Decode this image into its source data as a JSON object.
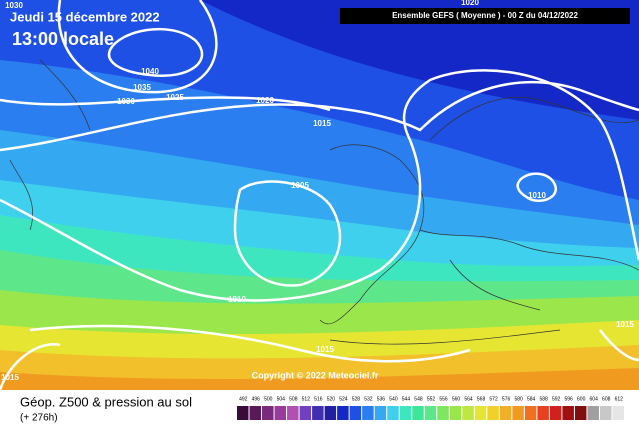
{
  "header": {
    "date": "Jeudi 15 décembre 2022",
    "time": "13:00 locale",
    "model": "Ensemble GEFS ( Moyenne ) - 00 Z du 04/12/2022"
  },
  "contour_labels": [
    "1030",
    "1040",
    "1035",
    "1030",
    "1025",
    "1020",
    "1015",
    "1005",
    "1010",
    "1010",
    "1015",
    "1015",
    "1015",
    "1020"
  ],
  "copyright": "Copyright © 2022 Meteociel.fr",
  "footer": {
    "title": "Géop. Z500 & pression au sol",
    "lead": "(+ 276h)"
  },
  "colorbar": {
    "ticks": [
      492,
      496,
      500,
      504,
      508,
      512,
      516,
      520,
      524,
      528,
      532,
      536,
      540,
      544,
      548,
      552,
      556,
      560,
      564,
      568,
      572,
      576,
      580,
      584,
      588,
      592,
      596,
      600,
      604,
      608,
      612
    ],
    "colors": [
      "#3a0a3a",
      "#5a1a5a",
      "#7a2a7a",
      "#9a3a9a",
      "#b050b0",
      "#7040c0",
      "#4030b0",
      "#2020a0",
      "#1428c8",
      "#1e50e6",
      "#2b7ef0",
      "#34a8f0",
      "#3fd0ee",
      "#3ee6c0",
      "#3ee69a",
      "#5ee68a",
      "#7ee660",
      "#9be64a",
      "#c0e640",
      "#e6e632",
      "#f2d02a",
      "#f2b02a",
      "#f09a20",
      "#f07020",
      "#e84020",
      "#d02020",
      "#a01010",
      "#801010",
      "#a0a0a0",
      "#c8c8c8",
      "#e6e6e6"
    ]
  }
}
